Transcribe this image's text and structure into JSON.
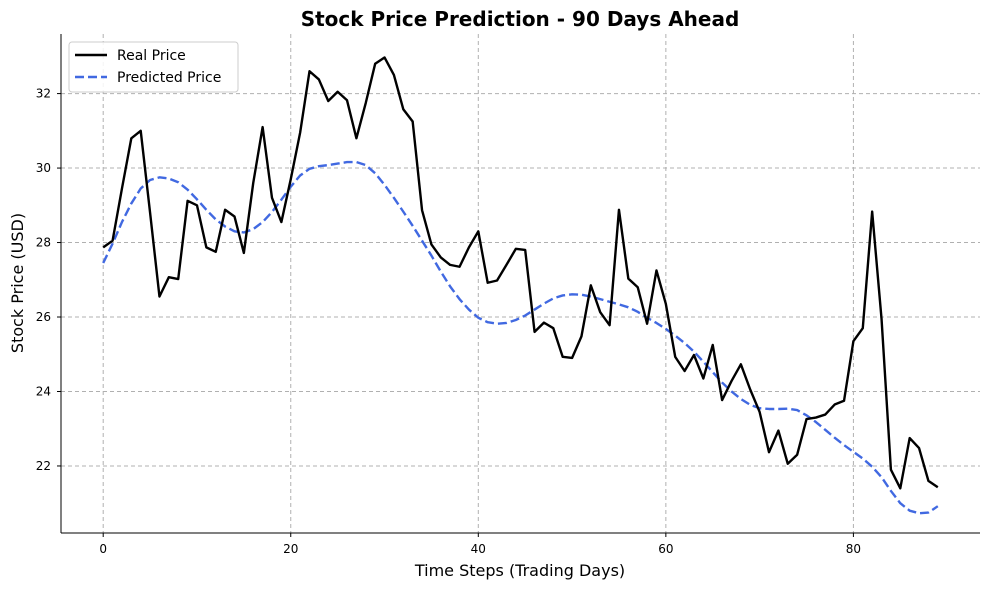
{
  "chart_data": {
    "type": "line",
    "title": "Stock Price Prediction - 90 Days Ahead",
    "xlabel": "Time Steps (Trading Days)",
    "ylabel": "Stock Price (USD)",
    "xlim": [
      -4.5,
      93.5
    ],
    "ylim": [
      20.2,
      33.6
    ],
    "xticks": [
      0,
      20,
      40,
      60,
      80
    ],
    "yticks": [
      22,
      24,
      26,
      28,
      30,
      32
    ],
    "grid": true,
    "legend_position": "top-left",
    "series": [
      {
        "name": "Real Price",
        "color": "#000000",
        "style": "solid",
        "x": [
          0,
          1,
          2,
          3,
          4,
          5,
          6,
          7,
          8,
          9,
          10,
          11,
          12,
          13,
          14,
          15,
          16,
          17,
          18,
          19,
          20,
          21,
          22,
          23,
          24,
          25,
          26,
          27,
          28,
          29,
          30,
          31,
          32,
          33,
          34,
          35,
          36,
          37,
          38,
          39,
          40,
          41,
          42,
          43,
          44,
          45,
          46,
          47,
          48,
          49,
          50,
          51,
          52,
          53,
          54,
          55,
          56,
          57,
          58,
          59,
          60,
          61,
          62,
          63,
          64,
          65,
          66,
          67,
          68,
          69,
          70,
          71,
          72,
          73,
          74,
          75,
          76,
          77,
          78,
          79,
          80,
          81,
          82,
          83,
          84,
          85,
          86,
          87,
          88,
          89
        ],
        "values": [
          27.87,
          28.05,
          29.45,
          30.8,
          31.0,
          28.8,
          26.55,
          27.07,
          27.02,
          29.12,
          29.0,
          27.87,
          27.75,
          28.88,
          28.7,
          27.72,
          29.6,
          31.1,
          29.2,
          28.55,
          29.7,
          30.95,
          32.6,
          32.38,
          31.8,
          32.05,
          31.82,
          30.8,
          31.75,
          32.8,
          32.97,
          32.5,
          31.58,
          31.25,
          28.87,
          27.95,
          27.6,
          27.4,
          27.35,
          27.87,
          28.3,
          26.92,
          26.98,
          27.4,
          27.83,
          27.8,
          25.6,
          25.85,
          25.7,
          24.93,
          24.9,
          25.48,
          26.85,
          26.13,
          25.78,
          28.88,
          27.03,
          26.8,
          25.82,
          27.25,
          26.35,
          24.93,
          24.55,
          24.98,
          24.35,
          25.25,
          23.77,
          24.28,
          24.73,
          24.05,
          23.45,
          22.37,
          22.95,
          22.06,
          22.3,
          23.26,
          23.3,
          23.38,
          23.65,
          23.75,
          25.35,
          25.7,
          28.83,
          25.95,
          21.9,
          21.4,
          22.75,
          22.48,
          21.6,
          21.43
        ]
      },
      {
        "name": "Predicted Price",
        "color": "#4169e1",
        "style": "dashed",
        "x": [
          0,
          1,
          2,
          3,
          4,
          5,
          6,
          7,
          8,
          9,
          10,
          11,
          12,
          13,
          14,
          15,
          16,
          17,
          18,
          19,
          20,
          21,
          22,
          23,
          24,
          25,
          26,
          27,
          28,
          29,
          30,
          31,
          32,
          33,
          34,
          35,
          36,
          37,
          38,
          39,
          40,
          41,
          42,
          43,
          44,
          45,
          46,
          47,
          48,
          49,
          50,
          51,
          52,
          53,
          54,
          55,
          56,
          57,
          58,
          59,
          60,
          61,
          62,
          63,
          64,
          65,
          66,
          67,
          68,
          69,
          70,
          71,
          72,
          73,
          74,
          75,
          76,
          77,
          78,
          79,
          80,
          81,
          82,
          83,
          84,
          85,
          86,
          87,
          88,
          89
        ],
        "values": [
          27.45,
          27.97,
          28.55,
          29.05,
          29.45,
          29.68,
          29.75,
          29.72,
          29.62,
          29.42,
          29.16,
          28.88,
          28.62,
          28.43,
          28.3,
          28.27,
          28.36,
          28.55,
          28.82,
          29.15,
          29.5,
          29.8,
          29.98,
          30.05,
          30.08,
          30.12,
          30.16,
          30.16,
          30.08,
          29.86,
          29.55,
          29.2,
          28.83,
          28.45,
          28.05,
          27.65,
          27.22,
          26.82,
          26.48,
          26.2,
          25.98,
          25.86,
          25.82,
          25.84,
          25.92,
          26.04,
          26.2,
          26.36,
          26.5,
          26.58,
          26.61,
          26.6,
          26.55,
          26.48,
          26.41,
          26.34,
          26.26,
          26.14,
          25.98,
          25.84,
          25.68,
          25.5,
          25.3,
          25.07,
          24.8,
          24.52,
          24.24,
          24.0,
          23.8,
          23.64,
          23.55,
          23.53,
          23.53,
          23.54,
          23.5,
          23.36,
          23.18,
          22.97,
          22.76,
          22.56,
          22.38,
          22.2,
          21.98,
          21.7,
          21.33,
          21.0,
          20.8,
          20.73,
          20.75,
          20.92
        ]
      }
    ]
  }
}
